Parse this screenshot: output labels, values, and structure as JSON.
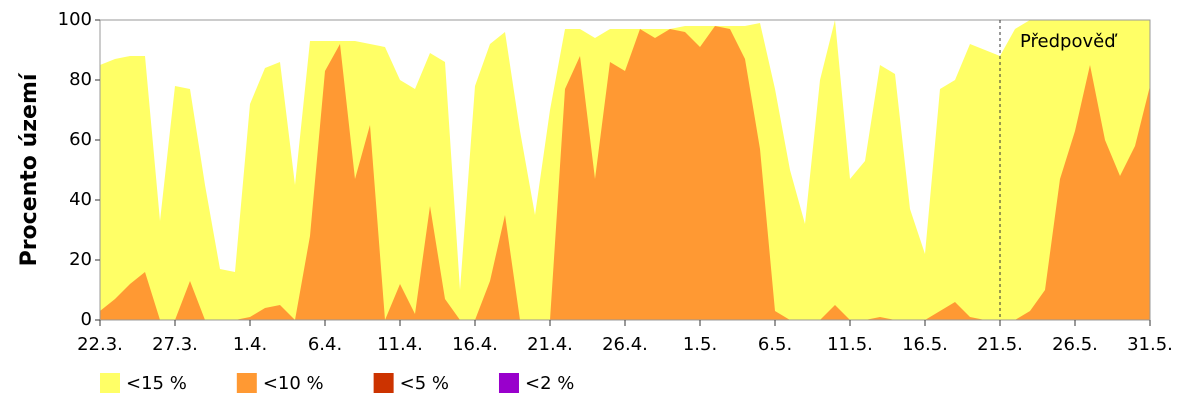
{
  "chart_data": {
    "type": "area",
    "ylabel": "Procento území",
    "categories": [
      "22.3.",
      null,
      null,
      null,
      null,
      "27.3.",
      null,
      null,
      null,
      null,
      "1.4.",
      null,
      null,
      null,
      null,
      "6.4.",
      null,
      null,
      null,
      null,
      "11.4.",
      null,
      null,
      null,
      null,
      "16.4.",
      null,
      null,
      null,
      null,
      "21.4.",
      null,
      null,
      null,
      null,
      "26.4.",
      null,
      null,
      null,
      null,
      "1.5.",
      null,
      null,
      null,
      null,
      "6.5.",
      null,
      null,
      null,
      null,
      "11.5.",
      null,
      null,
      null,
      null,
      "16.5.",
      null,
      null,
      null,
      null,
      "21.5.",
      null,
      null,
      null,
      null,
      "26.5.",
      null,
      null,
      null,
      null,
      "31.5."
    ],
    "series": [
      {
        "name": "<15 %",
        "color": "#ffff66",
        "values": [
          85,
          87,
          88,
          88,
          33,
          78,
          77,
          45,
          17,
          16,
          72,
          84,
          86,
          45,
          93,
          93,
          93,
          93,
          92,
          91,
          80,
          77,
          89,
          86,
          10,
          78,
          92,
          96,
          63,
          35,
          70,
          97,
          97,
          94,
          97,
          97,
          97,
          97,
          97,
          98,
          98,
          98,
          98,
          98,
          99,
          77,
          50,
          32,
          80,
          100,
          47,
          53,
          85,
          82,
          37,
          22,
          77,
          80,
          92,
          90,
          88,
          97,
          100,
          100,
          100,
          100,
          100,
          100,
          100,
          100,
          100
        ]
      },
      {
        "name": "<10 %",
        "color": "#ff9933",
        "values": [
          3,
          7,
          12,
          16,
          0,
          0,
          13,
          0,
          0,
          0,
          1,
          4,
          5,
          0,
          28,
          83,
          92,
          47,
          65,
          0,
          12,
          2,
          38,
          7,
          0,
          0,
          13,
          35,
          0,
          0,
          0,
          77,
          88,
          47,
          86,
          83,
          97,
          94,
          97,
          96,
          91,
          98,
          97,
          87,
          57,
          3,
          0,
          0,
          0,
          5,
          0,
          0,
          1,
          0,
          0,
          0,
          3,
          6,
          1,
          0,
          0,
          0,
          3,
          10,
          47,
          63,
          85,
          60,
          48,
          58,
          78
        ]
      },
      {
        "name": "<5 %",
        "color": "#cc3300",
        "values": [
          0,
          0,
          0,
          0,
          0,
          0,
          0,
          0,
          0,
          0,
          0,
          0,
          0,
          0,
          0,
          0,
          0,
          0,
          0,
          0,
          0,
          0,
          0,
          0,
          0,
          0,
          0,
          0,
          0,
          0,
          0,
          0,
          0,
          0,
          0,
          0,
          0,
          0,
          0,
          0,
          0,
          0,
          0,
          0,
          0,
          0,
          0,
          0,
          0,
          0,
          0,
          0,
          0,
          0,
          0,
          0,
          0,
          0,
          0,
          0,
          0,
          0,
          0,
          0,
          0,
          0,
          0,
          0,
          0,
          0,
          0
        ]
      },
      {
        "name": "<2 %",
        "color": "#9900cc",
        "values": [
          0,
          0,
          0,
          0,
          0,
          0,
          0,
          0,
          0,
          0,
          0,
          0,
          0,
          0,
          0,
          0,
          0,
          0,
          0,
          0,
          0,
          0,
          0,
          0,
          0,
          0,
          0,
          0,
          0,
          0,
          0,
          0,
          0,
          0,
          0,
          0,
          0,
          0,
          0,
          0,
          0,
          0,
          0,
          0,
          0,
          0,
          0,
          0,
          0,
          0,
          0,
          0,
          0,
          0,
          0,
          0,
          0,
          0,
          0,
          0,
          0,
          0,
          0,
          0,
          0,
          0,
          0,
          0,
          0,
          0,
          0
        ]
      }
    ],
    "annotation": {
      "text": "Předpověď",
      "at": "21.5."
    },
    "ylim": [
      0,
      100
    ],
    "yticks": [
      0,
      20,
      40,
      60,
      80,
      100
    ],
    "legend": "bottom"
  }
}
